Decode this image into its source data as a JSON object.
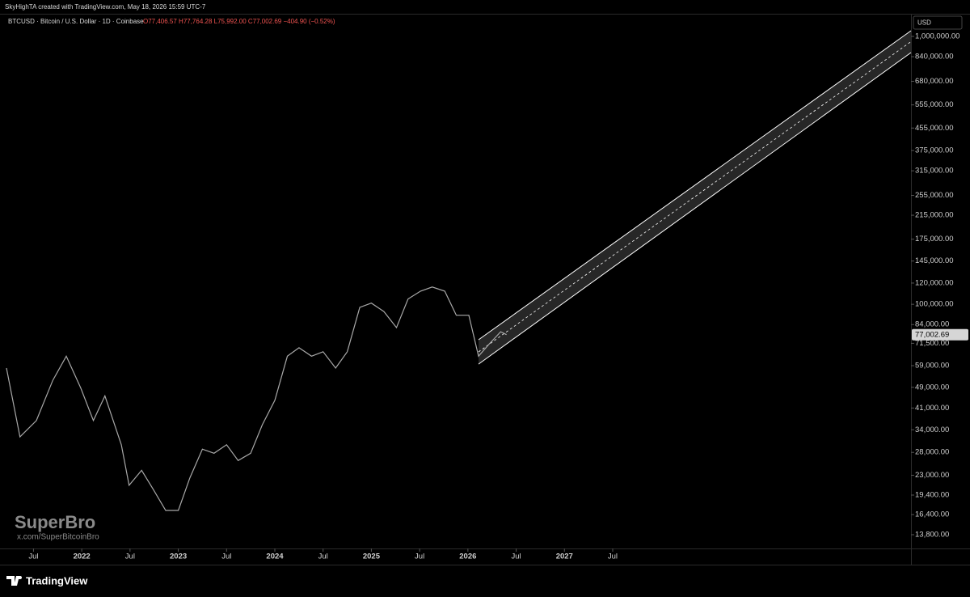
{
  "header": {
    "attribution": "SkyHighTA created with TradingView.com, May 18, 2026 15:59 UTC-7"
  },
  "chart_data": {
    "type": "line",
    "symbol": "BTCUSD · Bitcoin / U.S. Dollar · 1D · Coinbase",
    "ohlc_text": "O77,406.57 H77,764.28 L75,992.00 C77,002.69 −404.90 (−0.52%)",
    "currency": "USD",
    "log_scale": true,
    "color": "#a8a8a8",
    "x": [
      2021.22,
      2021.36,
      2021.53,
      2021.7,
      2021.84,
      2021.99,
      2022.12,
      2022.24,
      2022.41,
      2022.49,
      2022.62,
      2022.74,
      2022.87,
      2023.0,
      2023.12,
      2023.25,
      2023.37,
      2023.5,
      2023.62,
      2023.75,
      2023.87,
      2024.0,
      2024.13,
      2024.25,
      2024.38,
      2024.5,
      2024.63,
      2024.75,
      2024.88,
      2025.0,
      2025.13,
      2025.26,
      2025.38,
      2025.51,
      2025.63,
      2025.76,
      2025.88,
      2026.01,
      2026.11,
      2026.22,
      2026.34,
      2026.4
    ],
    "values": [
      57800,
      32000,
      36800,
      52000,
      64000,
      48600,
      36800,
      45500,
      29900,
      21100,
      24000,
      20400,
      17000,
      17000,
      22500,
      28800,
      27800,
      29900,
      26100,
      27800,
      35500,
      43800,
      64000,
      68800,
      64000,
      66500,
      57800,
      66500,
      97400,
      101000,
      94000,
      81800,
      104700,
      112000,
      116000,
      112000,
      91000,
      91000,
      64000,
      71000,
      79000,
      77000
    ],
    "channel": {
      "x": [
        2026.11,
        2030.59
      ],
      "upper": [
        73700,
        1050000
      ],
      "middle": [
        66400,
        956000
      ],
      "lower": [
        59800,
        870000
      ],
      "color": "#ffffff"
    },
    "last_price": {
      "value": 77002.69,
      "label": "77,002.69"
    },
    "xlim": [
      2021.22,
      2030.59
    ],
    "ylim": [
      12260,
      1206600
    ],
    "xticks": [
      {
        "value": 2021.5,
        "label": "Jul"
      },
      2022,
      {
        "value": 2022.5,
        "label": "Jul"
      },
      2023,
      {
        "value": 2023.5,
        "label": "Jul"
      },
      2024,
      {
        "value": 2024.5,
        "label": "Jul"
      },
      2025,
      {
        "value": 2025.5,
        "label": "Jul"
      },
      2026,
      {
        "value": 2026.5,
        "label": "Jul"
      },
      2027,
      {
        "value": 2027.5,
        "label": "Jul"
      }
    ],
    "yticks": [
      {
        "value": 1000000,
        "label": "1,000,000.00"
      },
      {
        "value": 840000,
        "label": "840,000.00"
      },
      {
        "value": 680000,
        "label": "680,000.00"
      },
      {
        "value": 555000,
        "label": "555,000.00"
      },
      {
        "value": 455000,
        "label": "455,000.00"
      },
      {
        "value": 375000,
        "label": "375,000.00"
      },
      {
        "value": 315000,
        "label": "315,000.00"
      },
      {
        "value": 255000,
        "label": "255,000.00"
      },
      {
        "value": 215000,
        "label": "215,000.00"
      },
      {
        "value": 175000,
        "label": "175,000.00"
      },
      {
        "value": 145000,
        "label": "145,000.00"
      },
      {
        "value": 120000,
        "label": "120,000.00"
      },
      {
        "value": 100000,
        "label": "100,000.00"
      },
      {
        "value": 84000,
        "label": "84,000.00"
      },
      {
        "value": 71500,
        "label": "71,500.00"
      },
      {
        "value": 59000,
        "label": "59,000.00"
      },
      {
        "value": 49000,
        "label": "49,000.00"
      },
      {
        "value": 41000,
        "label": "41,000.00"
      },
      {
        "value": 34000,
        "label": "34,000.00"
      },
      {
        "value": 28000,
        "label": "28,000.00"
      },
      {
        "value": 23000,
        "label": "23,000.00"
      },
      {
        "value": 19400,
        "label": "19,400.00"
      },
      {
        "value": 16400,
        "label": "16,400.00"
      },
      {
        "value": 13800,
        "label": "13,800.00"
      }
    ]
  },
  "watermark": {
    "title": "SuperBro",
    "handle": "x.com/SuperBitcoinBro"
  },
  "footer": {
    "brand": "TradingView"
  }
}
